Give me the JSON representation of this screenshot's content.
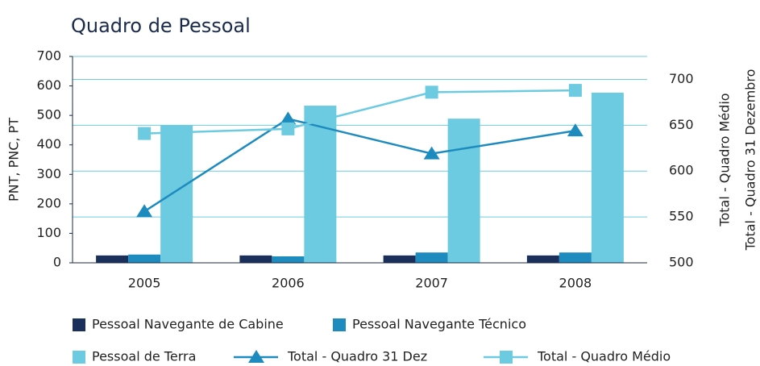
{
  "chart_data": {
    "type": "bar",
    "title": "Quadro de Pessoal",
    "y_label": "PNT, PNC, PT",
    "y2_labels": [
      "Total - Quadro Médio",
      "Total - Quadro 31 Dezembro"
    ],
    "categories": [
      "2005",
      "2006",
      "2007",
      "2008"
    ],
    "ylim": [
      0,
      700
    ],
    "yticks": [
      0,
      100,
      200,
      300,
      400,
      500,
      600,
      700
    ],
    "y2lim": [
      500,
      725
    ],
    "y2ticks": [
      500,
      550,
      600,
      650,
      700
    ],
    "grid": true,
    "series": [
      {
        "name": "Pessoal Navegante de Cabine",
        "type": "bar",
        "color": "#1b2f5b",
        "values": [
          25,
          25,
          25,
          25
        ]
      },
      {
        "name": "Pessoal Navegante Técnico",
        "type": "bar",
        "color": "#1e8bbf",
        "values": [
          28,
          22,
          35,
          35
        ]
      },
      {
        "name": "Pessoal de Terra",
        "type": "bar",
        "color": "#6ccbe0",
        "values": [
          467,
          533,
          489,
          577
        ]
      },
      {
        "name": "Total - Quadro 31 Dez",
        "type": "line",
        "marker": "triangle",
        "axis": "y2",
        "color": "#1e8bbf",
        "values": [
          556,
          657,
          619,
          644
        ]
      },
      {
        "name": "Total - Quadro Médio",
        "type": "line",
        "marker": "square",
        "axis": "y2",
        "color": "#6ccbe0",
        "values": [
          641,
          646,
          686,
          688
        ]
      }
    ]
  }
}
